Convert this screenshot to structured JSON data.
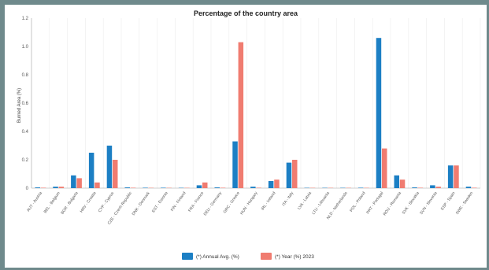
{
  "chart_data": {
    "type": "bar",
    "title": "Percentage of the country area",
    "ylabel": "Burned Area (%)",
    "xlabel": "",
    "ylim": [
      0,
      1.2
    ],
    "yticks": [
      0,
      0.2,
      0.4,
      0.6,
      0.8,
      1.0,
      1.2
    ],
    "ytick_labels": [
      "0",
      "0.2",
      "0.4",
      "0.6",
      "0.8",
      "1.0",
      "1.2"
    ],
    "grid": "vertical",
    "legend": "bottom-center",
    "categories": [
      "AUT - Austria",
      "BEL - Belgium",
      "BGR - Bulgaria",
      "HRV - Croatia",
      "CYP - Cyprus",
      "CZE - Czech Republic",
      "DNK - Denmark",
      "EST - Estonia",
      "FIN - Finland",
      "FRA - France",
      "DEU - Germany",
      "GRC - Greece",
      "HUN - Hungary",
      "IRL - Ireland",
      "ITA - Italy",
      "LVA - Latvia",
      "LTU - Lithuania",
      "NLD - Netherlands",
      "POL - Poland",
      "PRT - Portugal",
      "ROU - Romania",
      "SVK - Slovakia",
      "SVN - Slovenia",
      "ESP - Spain",
      "SWE - Sweden"
    ],
    "series": [
      {
        "name": "(*) Annual Avg. (%)",
        "color": "#1c7fc4",
        "values": [
          0.005,
          0.01,
          0.09,
          0.25,
          0.3,
          0.005,
          0.003,
          0.003,
          0.002,
          0.02,
          0.005,
          0.33,
          0.01,
          0.05,
          0.18,
          0.002,
          0.002,
          0.002,
          0.003,
          1.06,
          0.09,
          0.005,
          0.02,
          0.16,
          0.01
        ]
      },
      {
        "name": "(*) Year (%) 2023",
        "color": "#f07c70",
        "values": [
          0.003,
          0.01,
          0.07,
          0.04,
          0.2,
          0.003,
          0.002,
          0.002,
          0.002,
          0.04,
          0.003,
          1.03,
          0.003,
          0.06,
          0.2,
          0.002,
          0.002,
          0.002,
          0.002,
          0.28,
          0.06,
          0.003,
          0.01,
          0.16,
          0.003
        ]
      }
    ]
  }
}
